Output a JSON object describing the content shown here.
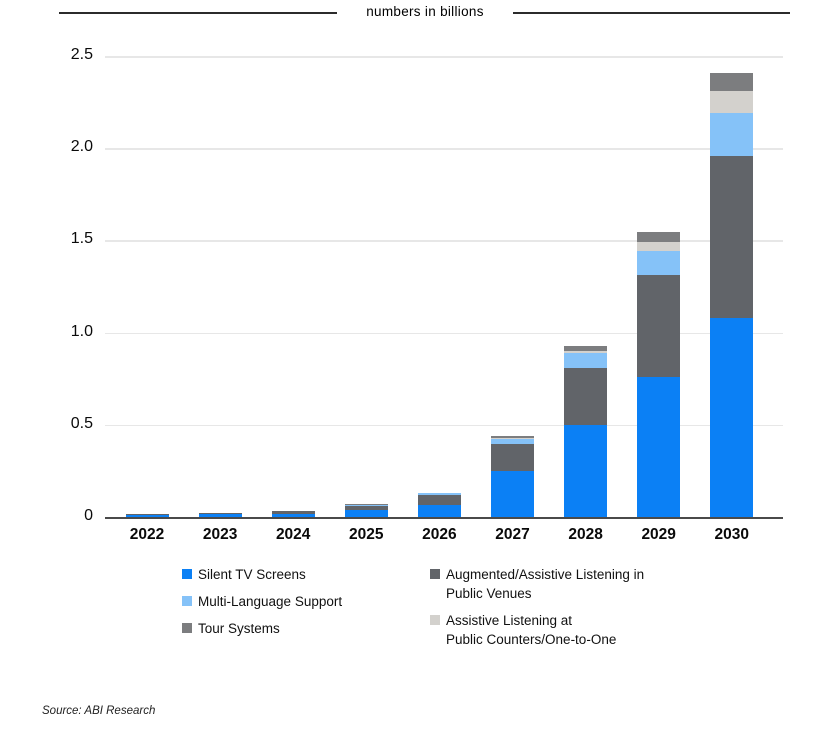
{
  "title": "numbers in billions",
  "source": "Source: ABI Research",
  "colors": {
    "silent": "#0b80f5",
    "venues": "#616469",
    "multilang": "#85c2f8",
    "counters": "#d3d1cd",
    "tour": "#7c7d7f"
  },
  "y_axis": {
    "ticks": [
      "2.5",
      "2.0",
      "1.5",
      "1.0",
      "0.5",
      "0"
    ]
  },
  "legend": {
    "columns": [
      {
        "items": [
          {
            "series": "silent",
            "label": "Silent TV Screens"
          },
          {
            "series": "multilang",
            "label": "Multi-Language Support"
          },
          {
            "series": "tour",
            "label": "Tour Systems"
          }
        ]
      },
      {
        "items": [
          {
            "series": "venues",
            "label": "Augmented/Assistive Listening in\nPublic Venues"
          },
          {
            "series": "counters",
            "label": "Assistive Listening at\nPublic Counters/One-to-One"
          }
        ]
      }
    ]
  },
  "chart_data": {
    "type": "bar",
    "subtype": "stacked-vertical",
    "title": "numbers in billions",
    "xlabel": "",
    "ylabel": "numbers in billions",
    "ylim": [
      0,
      2.5
    ],
    "grid": true,
    "legend_position": "bottom",
    "stack_order": "bottom-to-top",
    "categories": [
      "2022",
      "2023",
      "2024",
      "2025",
      "2026",
      "2027",
      "2028",
      "2029",
      "2030"
    ],
    "series": [
      {
        "key": "silent",
        "name": "Silent TV Screens",
        "values": [
          0.012,
          0.015,
          0.019,
          0.036,
          0.067,
          0.25,
          0.5,
          0.76,
          1.08
        ]
      },
      {
        "key": "venues",
        "name": "Augmented/Assistive Listening in Public Venues",
        "values": [
          0.004,
          0.005,
          0.011,
          0.022,
          0.05,
          0.145,
          0.31,
          0.55,
          0.88
        ]
      },
      {
        "key": "multilang",
        "name": "Multi-Language Support",
        "values": [
          0.001,
          0.001,
          0.002,
          0.009,
          0.013,
          0.03,
          0.078,
          0.13,
          0.23
        ]
      },
      {
        "key": "counters",
        "name": "Assistive Listening at Public Counters/One-to-One",
        "values": [
          0.0,
          0.0,
          0.001,
          0.001,
          0.001,
          0.002,
          0.012,
          0.05,
          0.12
        ]
      },
      {
        "key": "tour",
        "name": "Tour Systems",
        "values": [
          0.001,
          0.001,
          0.001,
          0.001,
          0.002,
          0.014,
          0.025,
          0.055,
          0.1
        ]
      }
    ],
    "totals": [
      0.018,
      0.022,
      0.034,
      0.069,
      0.133,
      0.441,
      0.925,
      1.545,
      2.41
    ]
  }
}
